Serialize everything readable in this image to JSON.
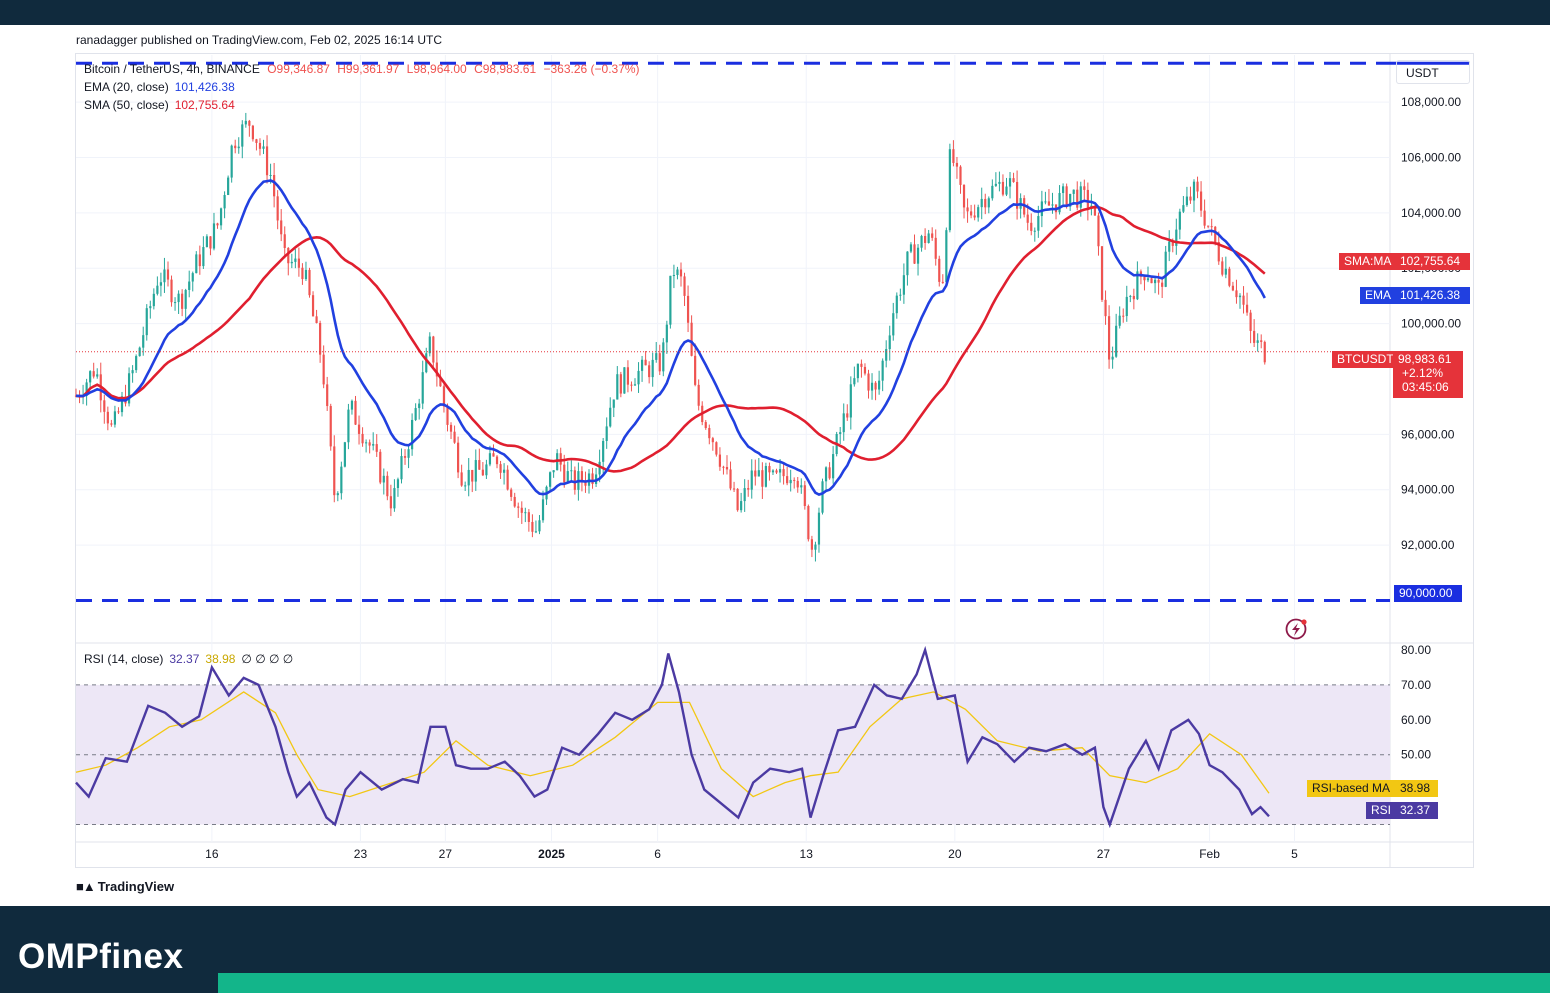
{
  "publisher": "ranadagger published on TradingView.com, Feb 02, 2025 16:14 UTC",
  "symbol_line": {
    "symbol": "Bitcoin / TetherUS, 4h, BINANCE",
    "open": "O99,346.87",
    "high": "H99,361.97",
    "low": "L98,964.00",
    "close": "C98,983.61",
    "change": "−363.26 (−0.37%)"
  },
  "indicators": {
    "ema": {
      "label": "EMA (20, close)",
      "value": "101,426.38",
      "tag": "EMA",
      "color": "#2140e0"
    },
    "sma": {
      "label": "SMA (50, close)",
      "value": "102,755.64",
      "tag": "SMA:MA",
      "color": "#e01f2f"
    },
    "rsi": {
      "label": "RSI (14, close)",
      "value": "32.37",
      "ma_value": "38.98",
      "extras": "∅ ∅ ∅ ∅",
      "tag": "RSI",
      "ma_tag": "RSI-based MA",
      "color": "#4b3aa2",
      "ma_color": "#f2c713"
    }
  },
  "price_tag": {
    "name": "BTCUSDT",
    "price": "98,983.61",
    "change_pct": "+2.12%",
    "countdown": "03:45:06"
  },
  "currency": "USDT",
  "support_label": "90,000.00",
  "colors": {
    "up": "#26a69a",
    "down": "#ef5350",
    "support_line": "#1a2ee0",
    "rsi_band": "#ede7f6",
    "tag_red": "#e5333a"
  },
  "tradingview_logo": "TradingView",
  "brand": "OMPfinex",
  "chart_data": [
    {
      "type": "candlestick",
      "interval": "4h",
      "y_ticks": [
        "108,000.00",
        "106,000.00",
        "104,000.00",
        "102,000.00",
        "100,000.00",
        "96,000.00",
        "94,000.00",
        "92,000.00"
      ],
      "x_ticks": [
        {
          "label": "16",
          "day": 16
        },
        {
          "label": "23",
          "day": 23
        },
        {
          "label": "27",
          "day": 27
        },
        {
          "label": "2025",
          "day": 32
        },
        {
          "label": "6",
          "day": 37
        },
        {
          "label": "13",
          "day": 44
        },
        {
          "label": "20",
          "day": 51
        },
        {
          "label": "27",
          "day": 58
        },
        {
          "label": "Feb",
          "day": 63
        },
        {
          "label": "5",
          "day": 67
        }
      ],
      "ylim": [
        88500,
        109700
      ],
      "xlim": [
        9.6,
        71.5
      ],
      "horizontal_lines": [
        109400,
        90000
      ],
      "last_price": 98983.61,
      "close_path": [
        [
          9.6,
          97400
        ],
        [
          10.5,
          98400
        ],
        [
          11.3,
          96100
        ],
        [
          12.3,
          98300
        ],
        [
          13.5,
          101800
        ],
        [
          14.5,
          100800
        ],
        [
          15.3,
          102200
        ],
        [
          16.3,
          103600
        ],
        [
          17,
          106600
        ],
        [
          17.8,
          107300
        ],
        [
          18.8,
          105300
        ],
        [
          19.4,
          102300
        ],
        [
          20.3,
          102000
        ],
        [
          21.2,
          98600
        ],
        [
          21.8,
          93600
        ],
        [
          22.5,
          97000
        ],
        [
          23.5,
          95500
        ],
        [
          24.5,
          93500
        ],
        [
          25.5,
          96500
        ],
        [
          26.3,
          99300
        ],
        [
          27,
          96800
        ],
        [
          27.8,
          94500
        ],
        [
          28.8,
          94700
        ],
        [
          29.5,
          95200
        ],
        [
          30.5,
          93300
        ],
        [
          31.3,
          92500
        ],
        [
          32.2,
          95200
        ],
        [
          33,
          94200
        ],
        [
          34,
          94600
        ],
        [
          35,
          97800
        ],
        [
          36,
          98200
        ],
        [
          37.2,
          98600
        ],
        [
          37.7,
          102000
        ],
        [
          38.2,
          101400
        ],
        [
          38.8,
          97300
        ],
        [
          39.8,
          95500
        ],
        [
          40.8,
          93200
        ],
        [
          41.5,
          94600
        ],
        [
          42.5,
          94300
        ],
        [
          43.5,
          94800
        ],
        [
          44.3,
          91800
        ],
        [
          44.7,
          93800
        ],
        [
          45.5,
          95800
        ],
        [
          46.5,
          98500
        ],
        [
          47.3,
          97400
        ],
        [
          48,
          100200
        ],
        [
          48.8,
          102300
        ],
        [
          49.8,
          103300
        ],
        [
          50.4,
          101300
        ],
        [
          50.8,
          106300
        ],
        [
          51.5,
          103800
        ],
        [
          52.5,
          104700
        ],
        [
          53.5,
          105200
        ],
        [
          54.5,
          103600
        ],
        [
          55.5,
          104300
        ],
        [
          56.5,
          104700
        ],
        [
          57.5,
          104300
        ],
        [
          58.3,
          98600
        ],
        [
          59,
          100800
        ],
        [
          60,
          102000
        ],
        [
          60.6,
          101200
        ],
        [
          61.5,
          103800
        ],
        [
          62.3,
          104800
        ],
        [
          63,
          103400
        ],
        [
          63.6,
          102200
        ],
        [
          64.5,
          100900
        ],
        [
          65,
          99400
        ],
        [
          65.6,
          98983
        ]
      ]
    },
    {
      "type": "line",
      "title": "RSI (14, close)",
      "y_ticks": [
        "80.00",
        "70.00",
        "60.00",
        "50.00"
      ],
      "ylim": [
        25,
        82
      ],
      "levels": [
        70,
        50,
        30
      ],
      "series": [
        {
          "name": "RSI",
          "values": [
            [
              9.6,
              42
            ],
            [
              10.2,
              38
            ],
            [
              11,
              49
            ],
            [
              12,
              48
            ],
            [
              13,
              64
            ],
            [
              13.8,
              62
            ],
            [
              14.6,
              58
            ],
            [
              15.4,
              61
            ],
            [
              16,
              75
            ],
            [
              16.8,
              67
            ],
            [
              17.5,
              72
            ],
            [
              18.2,
              70
            ],
            [
              19,
              58
            ],
            [
              19.6,
              45
            ],
            [
              20,
              38
            ],
            [
              20.6,
              42
            ],
            [
              21.4,
              32
            ],
            [
              21.8,
              30
            ],
            [
              22.3,
              40
            ],
            [
              23,
              45
            ],
            [
              24,
              40
            ],
            [
              25,
              43
            ],
            [
              25.7,
              42
            ],
            [
              26.3,
              58
            ],
            [
              27,
              58
            ],
            [
              27.5,
              47
            ],
            [
              28.2,
              46
            ],
            [
              29,
              46
            ],
            [
              29.8,
              48
            ],
            [
              30.5,
              44
            ],
            [
              31.2,
              38
            ],
            [
              31.8,
              40
            ],
            [
              32.5,
              52
            ],
            [
              33.3,
              50
            ],
            [
              34.2,
              56
            ],
            [
              35,
              62
            ],
            [
              35.8,
              60
            ],
            [
              36.6,
              63
            ],
            [
              37.2,
              70
            ],
            [
              37.5,
              79
            ],
            [
              38,
              68
            ],
            [
              38.6,
              50
            ],
            [
              39.2,
              40
            ],
            [
              40,
              36
            ],
            [
              40.8,
              32
            ],
            [
              41.5,
              42
            ],
            [
              42.3,
              46
            ],
            [
              43.2,
              45
            ],
            [
              43.8,
              46
            ],
            [
              44.2,
              32
            ],
            [
              44.8,
              44
            ],
            [
              45.5,
              57
            ],
            [
              46.3,
              58
            ],
            [
              47.2,
              70
            ],
            [
              47.8,
              67
            ],
            [
              48.5,
              66
            ],
            [
              49.2,
              73
            ],
            [
              49.6,
              80
            ],
            [
              50.2,
              66
            ],
            [
              51,
              67
            ],
            [
              51.6,
              48
            ],
            [
              52.3,
              55
            ],
            [
              53,
              53
            ],
            [
              53.8,
              48
            ],
            [
              54.5,
              52
            ],
            [
              55.3,
              51
            ],
            [
              56.2,
              53
            ],
            [
              57,
              50
            ],
            [
              57.6,
              52
            ],
            [
              58,
              35
            ],
            [
              58.3,
              30
            ],
            [
              59.2,
              46
            ],
            [
              60,
              54
            ],
            [
              60.6,
              46
            ],
            [
              61.2,
              57
            ],
            [
              62,
              60
            ],
            [
              62.5,
              56
            ],
            [
              63,
              47
            ],
            [
              63.6,
              45
            ],
            [
              64.4,
              40
            ],
            [
              65,
              33
            ],
            [
              65.4,
              35
            ],
            [
              65.8,
              32.37
            ]
          ]
        },
        {
          "name": "RSI-based MA",
          "values": [
            [
              9.6,
              45
            ],
            [
              11,
              47
            ],
            [
              12.5,
              52
            ],
            [
              14,
              58
            ],
            [
              15.5,
              60
            ],
            [
              17.5,
              68
            ],
            [
              19,
              62
            ],
            [
              20,
              50
            ],
            [
              21,
              40
            ],
            [
              22.5,
              38
            ],
            [
              24,
              41
            ],
            [
              26,
              45
            ],
            [
              27.5,
              54
            ],
            [
              29,
              47
            ],
            [
              31,
              44
            ],
            [
              33,
              47
            ],
            [
              35,
              55
            ],
            [
              37,
              65
            ],
            [
              38.5,
              65
            ],
            [
              40,
              46
            ],
            [
              41.5,
              38
            ],
            [
              43,
              42
            ],
            [
              44.2,
              44
            ],
            [
              45.5,
              45
            ],
            [
              47,
              58
            ],
            [
              48.5,
              66
            ],
            [
              50,
              68
            ],
            [
              51.5,
              63
            ],
            [
              53,
              54
            ],
            [
              55,
              51
            ],
            [
              57,
              52
            ],
            [
              58.3,
              44
            ],
            [
              60,
              42
            ],
            [
              61.5,
              46
            ],
            [
              63,
              56
            ],
            [
              64.5,
              50
            ],
            [
              65.8,
              38.98
            ]
          ]
        }
      ]
    }
  ]
}
